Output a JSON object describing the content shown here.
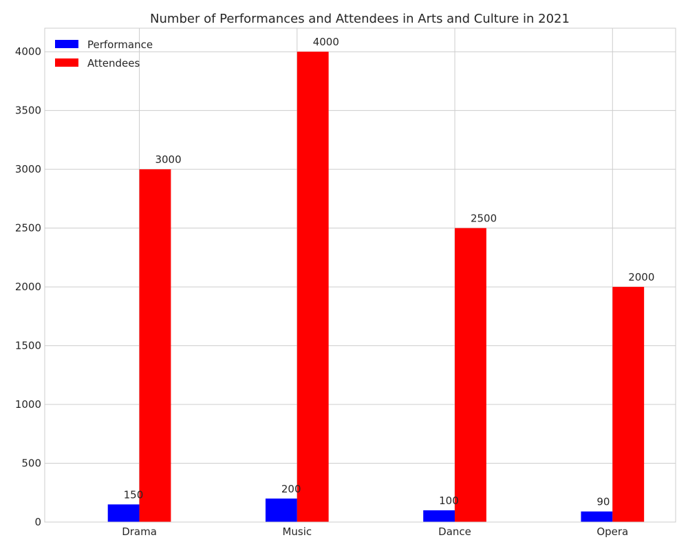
{
  "chart_data": {
    "type": "bar",
    "title": "Number of Performances and Attendees in Arts and Culture in 2021",
    "xlabel": "",
    "ylabel": "",
    "categories": [
      "Drama",
      "Music",
      "Dance",
      "Opera"
    ],
    "series": [
      {
        "name": "Performance",
        "values": [
          150,
          200,
          100,
          90
        ],
        "color": "#0000ff"
      },
      {
        "name": "Attendees",
        "values": [
          3000,
          4000,
          2500,
          2000
        ],
        "color": "#ff0000"
      }
    ],
    "ylim": [
      0,
      4200
    ],
    "yticks": [
      0,
      500,
      1000,
      1500,
      2000,
      2500,
      3000,
      3500,
      4000
    ],
    "grid": true,
    "legend_position": "top-left",
    "data_labels": true,
    "grid_color": "#cccccc",
    "axis_color": "#cccccc"
  }
}
